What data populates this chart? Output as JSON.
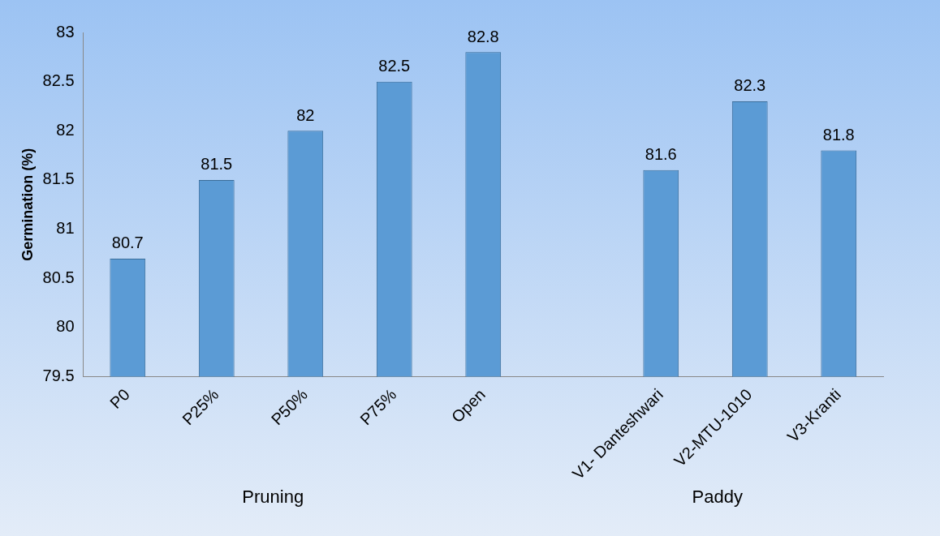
{
  "chart_data": {
    "type": "bar",
    "ylabel": "Germination (%)",
    "categories": [
      "P0",
      "P25%",
      "P50%",
      "P75%",
      "Open",
      null,
      "V1- Danteshwari",
      "V2-MTU-1010",
      "V3-Kranti"
    ],
    "values": [
      80.7,
      81.5,
      82,
      82.5,
      82.8,
      null,
      81.6,
      82.3,
      81.8
    ],
    "color": "#5b9bd5",
    "ylim": [
      79.5,
      83
    ],
    "yticks": [
      79.5,
      80,
      80.5,
      81,
      81.5,
      82,
      82.5,
      83
    ],
    "grid": false,
    "legend": false,
    "data_labels": true,
    "annotations": [
      "Pruning",
      "Paddy"
    ]
  }
}
